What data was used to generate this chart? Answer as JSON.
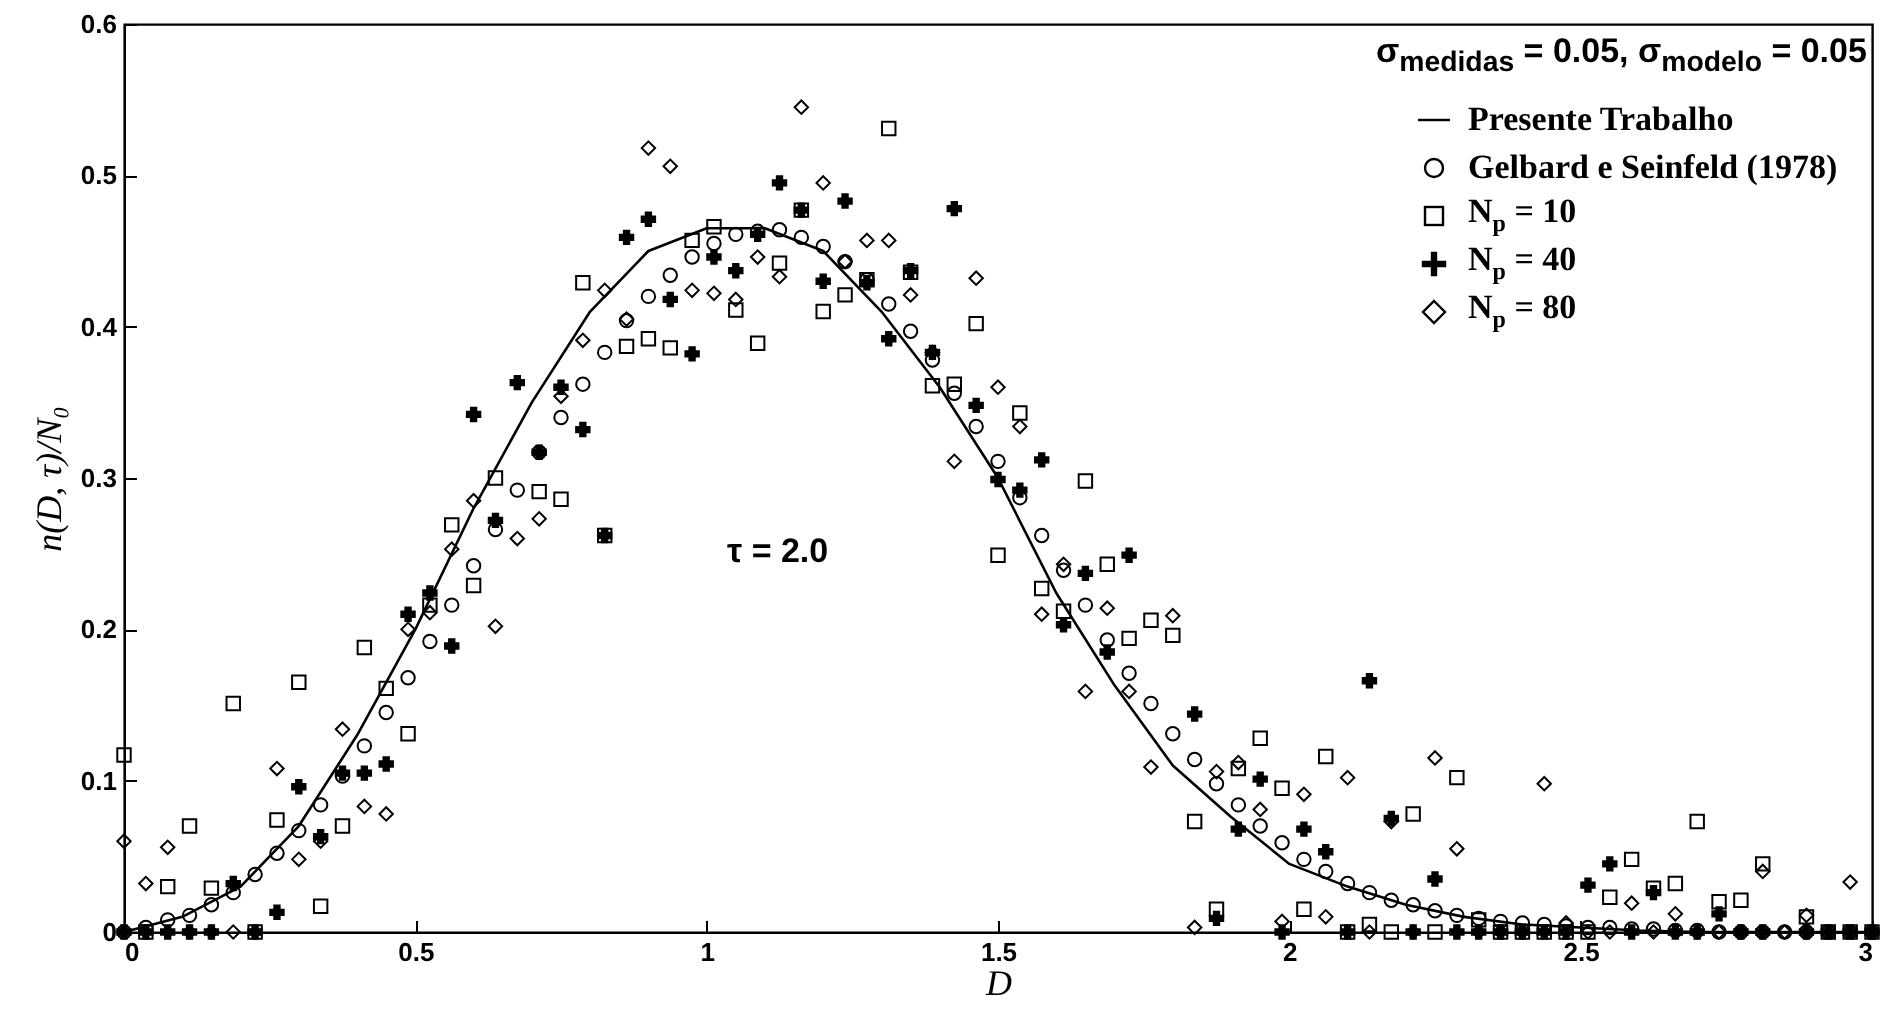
{
  "chart_data": {
    "type": "scatter",
    "xlabel": "D",
    "ylabel": "n(D, τ)/N₀",
    "legend_title": "σ$_{medidas}$ = 0.05, σ$_{modelo}$ = 0.05",
    "annotations": [
      "τ = 2.0"
    ],
    "legend": "top right",
    "grid": false,
    "xlim": [
      0,
      3
    ],
    "xticks": [
      0,
      0.5,
      1,
      1.5,
      2,
      2.5,
      3
    ],
    "ylim": [
      0,
      0.6
    ],
    "yticks": [
      0,
      0.1,
      0.2,
      0.3,
      0.4,
      0.5,
      0.6
    ],
    "x": [
      0,
      0.0375,
      0.075,
      0.1125,
      0.15,
      0.1875,
      0.225,
      0.2625,
      0.3,
      0.3375,
      0.375,
      0.4125,
      0.45,
      0.4875,
      0.525,
      0.5625,
      0.6,
      0.6375,
      0.675,
      0.7125,
      0.75,
      0.7875,
      0.825,
      0.8625,
      0.9,
      0.9375,
      0.975,
      1.0125,
      1.05,
      1.0875,
      1.125,
      1.1625,
      1.2,
      1.2375,
      1.275,
      1.3125,
      1.35,
      1.3875,
      1.425,
      1.4625,
      1.5,
      1.5375,
      1.575,
      1.6125,
      1.65,
      1.6875,
      1.725,
      1.7625,
      1.8,
      1.8375,
      1.875,
      1.9125,
      1.95,
      1.9875,
      2.025,
      2.0625,
      2.1,
      2.1375,
      2.175,
      2.2125,
      2.25,
      2.2875,
      2.325,
      2.3625,
      2.4,
      2.4375,
      2.475,
      2.5125,
      2.55,
      2.5875,
      2.625,
      2.6625,
      2.7,
      2.7375,
      2.775,
      2.8125,
      2.85,
      2.8875,
      2.925,
      2.9625,
      3
    ],
    "series": [
      {
        "name": "Presente Trabalho",
        "type": "line",
        "marker": "none",
        "line_style": "solid",
        "color": "#000000",
        "x": [
          0,
          0.1,
          0.2,
          0.3,
          0.4,
          0.5,
          0.6,
          0.7,
          0.8,
          0.9,
          1,
          1.1,
          1.2,
          1.3,
          1.4,
          1.5,
          1.6,
          1.7,
          1.8,
          1.9,
          2,
          2.1,
          2.2,
          2.3,
          2.4,
          2.5,
          2.6,
          2.7,
          2.8,
          2.9,
          3
        ],
        "values": [
          0,
          0.01,
          0.03,
          0.07,
          0.13,
          0.2,
          0.28,
          0.35,
          0.41,
          0.45,
          0.465,
          0.465,
          0.45,
          0.41,
          0.36,
          0.3,
          0.224,
          0.163,
          0.11,
          0.076,
          0.045,
          0.03,
          0.018,
          0.01,
          0.005,
          0.003,
          0.001,
          0,
          0,
          0,
          0
        ]
      },
      {
        "name": "Gelbard e Seinfeld (1978)",
        "marker": "circle",
        "color": "#000000",
        "values": [
          0,
          0.003,
          0.008,
          0.011,
          0.018,
          0.026,
          0.038,
          0.052,
          0.067,
          0.084,
          0.103,
          0.123,
          0.145,
          0.168,
          0.192,
          0.216,
          0.242,
          0.266,
          0.292,
          0.317,
          0.34,
          0.362,
          0.383,
          0.404,
          0.42,
          0.434,
          0.446,
          0.455,
          0.461,
          0.463,
          0.464,
          0.459,
          0.453,
          0.443,
          0.431,
          0.415,
          0.397,
          0.378,
          0.356,
          0.334,
          0.311,
          0.287,
          0.262,
          0.239,
          0.216,
          0.193,
          0.171,
          0.151,
          0.131,
          0.114,
          0.098,
          0.084,
          0.07,
          0.059,
          0.048,
          0.04,
          0.032,
          0.026,
          0.021,
          0.018,
          0.014,
          0.011,
          0.009,
          0.007,
          0.006,
          0.005,
          0.004,
          0.003,
          0.003,
          0.002,
          0.002,
          0.001,
          0.001,
          0,
          0,
          0,
          0,
          0,
          0,
          0,
          0
        ]
      },
      {
        "name": "N$_{p}$ = 10",
        "marker": "square",
        "color": "#000000",
        "values": [
          0.117,
          0,
          0.03,
          0.07,
          0.029,
          0.151,
          0,
          0.074,
          0.165,
          0.017,
          0.07,
          0.188,
          0.161,
          0.131,
          0.216,
          0.269,
          0.229,
          0.3,
          null,
          0.291,
          0.286,
          0.429,
          0.262,
          0.387,
          0.392,
          0.386,
          0.457,
          0.466,
          0.411,
          0.389,
          0.442,
          0.477,
          0.41,
          0.421,
          0.431,
          0.531,
          0.436,
          0.361,
          0.362,
          0.402,
          0.249,
          0.343,
          0.227,
          0.212,
          0.298,
          0.243,
          0.194,
          0.206,
          0.196,
          0.073,
          0.015,
          0.108,
          0.128,
          0.095,
          0.015,
          0.116,
          0,
          0.005,
          0,
          0.078,
          0,
          0.102,
          0.008,
          0,
          0,
          0,
          0,
          0,
          0.023,
          0.048,
          0.029,
          0.032,
          0.073,
          0.02,
          0.021,
          0.045,
          null,
          0.01,
          0,
          0,
          0
        ]
      },
      {
        "name": "N$_{p}$ = 40",
        "marker": "cross",
        "color": "#000000",
        "values": [
          0,
          0,
          0,
          0,
          0,
          0.032,
          0,
          0.013,
          0.096,
          0.063,
          0.105,
          0.105,
          0.111,
          0.21,
          0.224,
          0.189,
          0.342,
          0.272,
          0.363,
          0.317,
          0.36,
          0.332,
          0.262,
          0.459,
          0.471,
          0.418,
          0.382,
          0.446,
          0.437,
          0.461,
          0.495,
          0.477,
          0.43,
          0.483,
          0.429,
          0.392,
          0.437,
          0.383,
          0.478,
          0.348,
          0.299,
          0.292,
          0.312,
          0.203,
          0.237,
          0.185,
          0.249,
          null,
          null,
          0.144,
          0.009,
          0.068,
          0.101,
          0,
          0.068,
          0.053,
          0,
          0.166,
          0.075,
          0,
          0.035,
          0,
          0,
          0,
          0,
          0,
          0,
          0.031,
          0.045,
          0,
          0.026,
          0,
          0,
          0.012,
          0,
          0,
          null,
          0,
          0,
          0,
          0
        ]
      },
      {
        "name": "N$_{p}$ = 80",
        "marker": "diamond",
        "color": "#000000",
        "values": [
          0.06,
          0.032,
          0.056,
          0,
          0,
          0,
          0,
          0.108,
          0.048,
          0.06,
          0.134,
          0.083,
          0.078,
          0.2,
          0.211,
          0.253,
          0.285,
          0.202,
          0.26,
          0.273,
          0.354,
          0.391,
          0.424,
          0.405,
          0.518,
          0.506,
          0.424,
          0.422,
          0.418,
          0.446,
          0.433,
          0.545,
          0.495,
          0.443,
          0.457,
          0.457,
          0.421,
          0.383,
          0.311,
          0.432,
          0.36,
          0.334,
          0.21,
          0.243,
          0.159,
          0.214,
          0.159,
          0.109,
          0.209,
          0.003,
          0.106,
          0.112,
          0.081,
          0.007,
          0.091,
          0.01,
          0.102,
          0,
          0.073,
          0,
          0.115,
          0.055,
          0,
          0,
          0,
          0.098,
          0.006,
          0,
          0,
          0.019,
          0,
          0.012,
          0,
          0,
          0,
          0.04,
          0,
          0.011,
          null,
          0.033,
          0
        ]
      }
    ]
  }
}
